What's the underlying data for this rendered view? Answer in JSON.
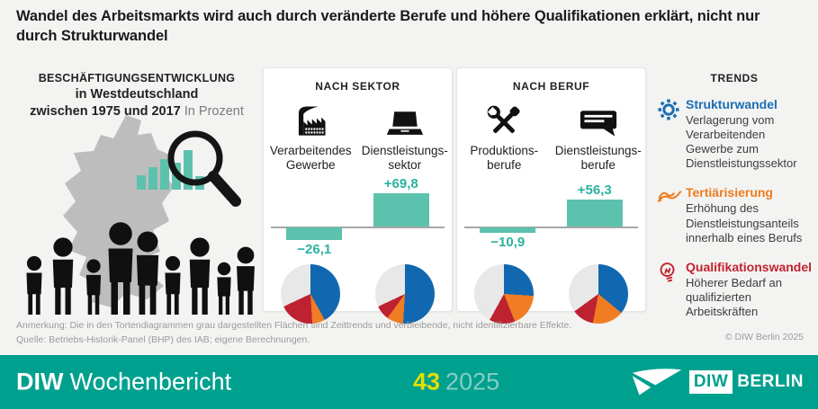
{
  "title": "Wandel des Arbeitsmarkts wird auch durch veränderte Berufe und höhere Qualifikationen erklärt, nicht nur durch Strukturwandel",
  "employment": {
    "heading": "BESCHÄFTIGUNGSENTWICKLUNG",
    "region": "in Westdeutschland",
    "period": "zwischen 1975 und 2017",
    "unit": "In Prozent"
  },
  "sector_panel": {
    "title": "NACH SEKTOR",
    "items": [
      {
        "line1": "Verarbeitendes",
        "line2": "Gewerbe",
        "value_label": "−26,1"
      },
      {
        "line1": "Dienstleistungs-",
        "line2": "sektor",
        "value_label": "+69,8"
      }
    ]
  },
  "beruf_panel": {
    "title": "NACH BERUF",
    "items": [
      {
        "line1": "Produktions-",
        "line2": "berufe",
        "value_label": "−10,9"
      },
      {
        "line1": "Dienstleistungs-",
        "line2": "berufe",
        "value_label": "+56,3"
      }
    ]
  },
  "trends": {
    "title": "TRENDS",
    "items": [
      {
        "label": "Strukturwandel",
        "desc": "Verlagerung vom Verarbeitenden Gewerbe zum Dienstleistungssektor",
        "color": "#1b6fb5",
        "icon": "gear-icon"
      },
      {
        "label": "Tertiärisierung",
        "desc": "Erhöhung des Dienstleistungsanteils innerhalb eines Berufs",
        "color": "#ef7c1e",
        "icon": "hand-icon"
      },
      {
        "label": "Qualifikationswandel",
        "desc": "Höherer Bedarf an qualifizierten Arbeitskräften",
        "color": "#c2232e",
        "icon": "lightbulb-icon"
      }
    ]
  },
  "footer": {
    "note": "Anmerkung: Die in den Tortendiagrammen grau dargestellten Flächen sind Zeittrends und verbleibende, nicht identifizierbare Effekte.",
    "source": "Quelle: Betriebs-Historik-Panel (BHP) des IAB; eigene Berechnungen.",
    "copyright": "© DIW Berlin 2025"
  },
  "band": {
    "brand_bold": "DIW",
    "brand_name": "Wochenbericht",
    "issue": "43",
    "year": "2025",
    "logo_diw": "DIW",
    "logo_berlin": "BERLIN"
  },
  "icons": {
    "factory-icon": "factory silhouette",
    "laptop-icon": "laptop silhouette",
    "tools-icon": "crossed wrench and screwdriver",
    "speech-bubble-icon": "speech bubble with text lines",
    "gear-icon": "gear outline",
    "hand-icon": "serving hand outline",
    "lightbulb-icon": "lightbulb outline",
    "magnifier-icon": "magnifying glass over bar chart",
    "germany-map": "grey silhouette of Germany",
    "people-silhouettes": "row of worker silhouettes",
    "diw-logo-envelope-icon": "white envelope swoosh"
  },
  "colors": {
    "background": "#f3f3f2",
    "bar_teal": "#5cc2ae",
    "value_teal": "#2bb2a0",
    "pie_blue": "#1268b0",
    "pie_orange": "#f07d23",
    "pie_red": "#be2231",
    "pie_grey": "#e8e8e8",
    "band_teal": "#00a08e",
    "issue_yellow": "#e2e000"
  },
  "chart_data": [
    {
      "type": "bar",
      "title": "NACH SEKTOR",
      "unit": "Prozent",
      "categories": [
        "Verarbeitendes Gewerbe",
        "Dienstleistungssektor"
      ],
      "values": [
        -26.1,
        69.8
      ],
      "value_labels": [
        "−26,1",
        "+69,8"
      ],
      "bar_color": "#5cc2ae",
      "baseline": 0
    },
    {
      "type": "bar",
      "title": "NACH BERUF",
      "unit": "Prozent",
      "categories": [
        "Produktionsberufe",
        "Dienstleistungsberufe"
      ],
      "values": [
        -10.9,
        56.3
      ],
      "value_labels": [
        "−10,9",
        "+56,3"
      ],
      "bar_color": "#5cc2ae",
      "baseline": 0
    },
    {
      "type": "pie",
      "title": "Verarbeitendes Gewerbe – Zerlegung",
      "segments": [
        {
          "name": "Strukturwandel",
          "color": "#1268b0",
          "value": 42
        },
        {
          "name": "Tertiärisierung",
          "color": "#f07d23",
          "value": 7
        },
        {
          "name": "Qualifikationswandel",
          "color": "#be2231",
          "value": 19
        },
        {
          "name": "Zeittrends und verbleibende, nicht identifizierbare Effekte",
          "color": "#e8e8e8",
          "value": 32
        }
      ]
    },
    {
      "type": "pie",
      "title": "Dienstleistungssektor – Zerlegung",
      "segments": [
        {
          "name": "Strukturwandel",
          "color": "#1268b0",
          "value": 51
        },
        {
          "name": "Tertiärisierung",
          "color": "#f07d23",
          "value": 9
        },
        {
          "name": "Qualifikationswandel",
          "color": "#be2231",
          "value": 8
        },
        {
          "name": "Zeittrends und verbleibende, nicht identifizierbare Effekte",
          "color": "#e8e8e8",
          "value": 32
        }
      ]
    },
    {
      "type": "pie",
      "title": "Produktionsberufe – Zerlegung",
      "segments": [
        {
          "name": "Strukturwandel",
          "color": "#1268b0",
          "value": 26
        },
        {
          "name": "Tertiärisierung",
          "color": "#f07d23",
          "value": 18
        },
        {
          "name": "Qualifikationswandel",
          "color": "#be2231",
          "value": 14
        },
        {
          "name": "Zeittrends und verbleibende, nicht identifizierbare Effekte",
          "color": "#e8e8e8",
          "value": 42
        }
      ]
    },
    {
      "type": "pie",
      "title": "Dienstleistungsberufe – Zerlegung",
      "segments": [
        {
          "name": "Strukturwandel",
          "color": "#1268b0",
          "value": 36
        },
        {
          "name": "Tertiärisierung",
          "color": "#f07d23",
          "value": 17
        },
        {
          "name": "Qualifikationswandel",
          "color": "#be2231",
          "value": 12
        },
        {
          "name": "Zeittrends und verbleibende, nicht identifizierbare Effekte",
          "color": "#e8e8e8",
          "value": 35
        }
      ]
    }
  ]
}
